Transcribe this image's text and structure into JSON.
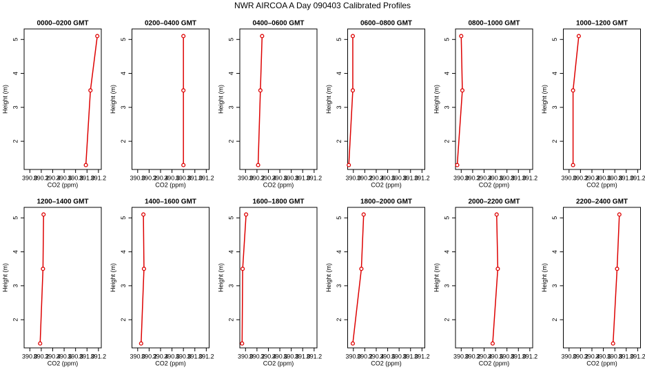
{
  "title": "NWR AIRCOA A  Day 090403  Calibrated Profiles",
  "chart_data": [
    {
      "type": "line",
      "title": "0000–0200 GMT",
      "xlabel": "CO2 (ppm)",
      "ylabel": "Height (m)",
      "color": "#dd0000",
      "x": [
        390.98,
        391.06,
        391.18
      ],
      "values": [
        1.3,
        3.5,
        5.1
      ],
      "xlim": [
        389.9,
        391.25
      ],
      "ylim": [
        1.17,
        5.31
      ],
      "xticks": [
        {
          "value": 390,
          "label": "390.0"
        },
        390.2,
        390.4,
        390.6,
        390.8,
        {
          "value": 391,
          "label": "391.0"
        },
        391.2
      ],
      "yticks": [
        2,
        3,
        4,
        5
      ]
    },
    {
      "type": "line",
      "title": "0200–0400 GMT",
      "xlabel": "CO2 (ppm)",
      "ylabel": "Height (m)",
      "color": "#dd0000",
      "x": [
        390.8,
        390.8,
        390.8
      ],
      "values": [
        1.3,
        3.5,
        5.1
      ],
      "xlim": [
        389.9,
        391.25
      ],
      "ylim": [
        1.17,
        5.31
      ],
      "xticks": [
        {
          "value": 390,
          "label": "390.0"
        },
        390.2,
        390.4,
        390.6,
        390.8,
        {
          "value": 391,
          "label": "391.0"
        },
        391.2
      ],
      "yticks": [
        2,
        3,
        4,
        5
      ]
    },
    {
      "type": "line",
      "title": "0400–0600 GMT",
      "xlabel": "CO2 (ppm)",
      "ylabel": "Height (m)",
      "color": "#dd0000",
      "x": [
        390.22,
        390.26,
        390.29
      ],
      "values": [
        1.3,
        3.5,
        5.1
      ],
      "xlim": [
        389.9,
        391.25
      ],
      "ylim": [
        1.17,
        5.31
      ],
      "xticks": [
        {
          "value": 390,
          "label": "390.0"
        },
        390.2,
        390.4,
        390.6,
        390.8,
        {
          "value": 391,
          "label": "391.0"
        },
        391.2
      ],
      "yticks": [
        2,
        3,
        4,
        5
      ]
    },
    {
      "type": "line",
      "title": "0600–0800 GMT",
      "xlabel": "CO2 (ppm)",
      "ylabel": "Height (m)",
      "color": "#dd0000",
      "x": [
        389.92,
        389.99,
        389.99
      ],
      "values": [
        1.3,
        3.5,
        5.1
      ],
      "xlim": [
        389.9,
        391.25
      ],
      "ylim": [
        1.17,
        5.31
      ],
      "xticks": [
        {
          "value": 390,
          "label": "390.0"
        },
        390.2,
        390.4,
        390.6,
        390.8,
        {
          "value": 391,
          "label": "391.0"
        },
        391.2
      ],
      "yticks": [
        2,
        3,
        4,
        5
      ]
    },
    {
      "type": "line",
      "title": "0800–1000 GMT",
      "xlabel": "CO2 (ppm)",
      "ylabel": "Height (m)",
      "color": "#dd0000",
      "x": [
        389.93,
        390.02,
        390.0
      ],
      "values": [
        1.3,
        3.5,
        5.1
      ],
      "xlim": [
        389.9,
        391.25
      ],
      "ylim": [
        1.17,
        5.31
      ],
      "xticks": [
        {
          "value": 390,
          "label": "390.0"
        },
        390.2,
        390.4,
        390.6,
        390.8,
        {
          "value": 391,
          "label": "391.0"
        },
        391.2
      ],
      "yticks": [
        2,
        3,
        4,
        5
      ]
    },
    {
      "type": "line",
      "title": "1000–1200 GMT",
      "xlabel": "CO2 (ppm)",
      "ylabel": "Height (m)",
      "color": "#dd0000",
      "x": [
        390.07,
        390.07,
        390.17
      ],
      "values": [
        1.3,
        3.5,
        5.1
      ],
      "xlim": [
        389.9,
        391.25
      ],
      "ylim": [
        1.17,
        5.31
      ],
      "xticks": [
        {
          "value": 390,
          "label": "390.0"
        },
        390.2,
        390.4,
        390.6,
        390.8,
        {
          "value": 391,
          "label": "391.0"
        },
        391.2
      ],
      "yticks": [
        2,
        3,
        4,
        5
      ]
    },
    {
      "type": "line",
      "title": "1200–1400 GMT",
      "xlabel": "CO2 (ppm)",
      "ylabel": "Height (m)",
      "color": "#dd0000",
      "x": [
        390.18,
        390.23,
        390.24
      ],
      "values": [
        1.3,
        3.5,
        5.1
      ],
      "xlim": [
        389.9,
        391.25
      ],
      "ylim": [
        1.17,
        5.31
      ],
      "xticks": [
        {
          "value": 390,
          "label": "390.0"
        },
        390.2,
        390.4,
        390.6,
        390.8,
        {
          "value": 391,
          "label": "391.0"
        },
        391.2
      ],
      "yticks": [
        2,
        3,
        4,
        5
      ]
    },
    {
      "type": "line",
      "title": "1400–1600 GMT",
      "xlabel": "CO2 (ppm)",
      "ylabel": "Height (m)",
      "color": "#dd0000",
      "x": [
        390.06,
        390.11,
        390.1
      ],
      "values": [
        1.3,
        3.5,
        5.1
      ],
      "xlim": [
        389.9,
        391.25
      ],
      "ylim": [
        1.17,
        5.31
      ],
      "xticks": [
        {
          "value": 390,
          "label": "390.0"
        },
        390.2,
        390.4,
        390.6,
        390.8,
        {
          "value": 391,
          "label": "391.0"
        },
        391.2
      ],
      "yticks": [
        2,
        3,
        4,
        5
      ]
    },
    {
      "type": "line",
      "title": "1600–1800 GMT",
      "xlabel": "CO2 (ppm)",
      "ylabel": "Height (m)",
      "color": "#dd0000",
      "x": [
        389.94,
        389.95,
        390.01
      ],
      "values": [
        1.3,
        3.5,
        5.1
      ],
      "xlim": [
        389.9,
        391.25
      ],
      "ylim": [
        1.17,
        5.31
      ],
      "xticks": [
        {
          "value": 390,
          "label": "390.0"
        },
        390.2,
        390.4,
        390.6,
        390.8,
        {
          "value": 391,
          "label": "391.0"
        },
        391.2
      ],
      "yticks": [
        2,
        3,
        4,
        5
      ]
    },
    {
      "type": "line",
      "title": "1800–2000 GMT",
      "xlabel": "CO2 (ppm)",
      "ylabel": "Height (m)",
      "color": "#dd0000",
      "x": [
        389.99,
        390.14,
        390.18
      ],
      "values": [
        1.3,
        3.5,
        5.1
      ],
      "xlim": [
        389.9,
        391.25
      ],
      "ylim": [
        1.17,
        5.31
      ],
      "xticks": [
        {
          "value": 390,
          "label": "390.0"
        },
        390.2,
        390.4,
        390.6,
        390.8,
        {
          "value": 391,
          "label": "391.0"
        },
        391.2
      ],
      "yticks": [
        2,
        3,
        4,
        5
      ]
    },
    {
      "type": "line",
      "title": "2000–2200 GMT",
      "xlabel": "CO2 (ppm)",
      "ylabel": "Height (m)",
      "color": "#dd0000",
      "x": [
        390.55,
        390.64,
        390.62
      ],
      "values": [
        1.3,
        3.5,
        5.1
      ],
      "xlim": [
        389.9,
        391.25
      ],
      "ylim": [
        1.17,
        5.31
      ],
      "xticks": [
        {
          "value": 390,
          "label": "390.0"
        },
        390.2,
        390.4,
        390.6,
        390.8,
        {
          "value": 391,
          "label": "391.0"
        },
        391.2
      ],
      "yticks": [
        2,
        3,
        4,
        5
      ]
    },
    {
      "type": "line",
      "title": "2200–2400 GMT",
      "xlabel": "CO2 (ppm)",
      "ylabel": "Height (m)",
      "color": "#dd0000",
      "x": [
        390.77,
        390.84,
        390.88
      ],
      "values": [
        1.3,
        3.5,
        5.1
      ],
      "xlim": [
        389.9,
        391.25
      ],
      "ylim": [
        1.17,
        5.31
      ],
      "xticks": [
        {
          "value": 390,
          "label": "390.0"
        },
        390.2,
        390.4,
        390.6,
        390.8,
        {
          "value": 391,
          "label": "391.0"
        },
        391.2
      ],
      "yticks": [
        2,
        3,
        4,
        5
      ]
    }
  ]
}
